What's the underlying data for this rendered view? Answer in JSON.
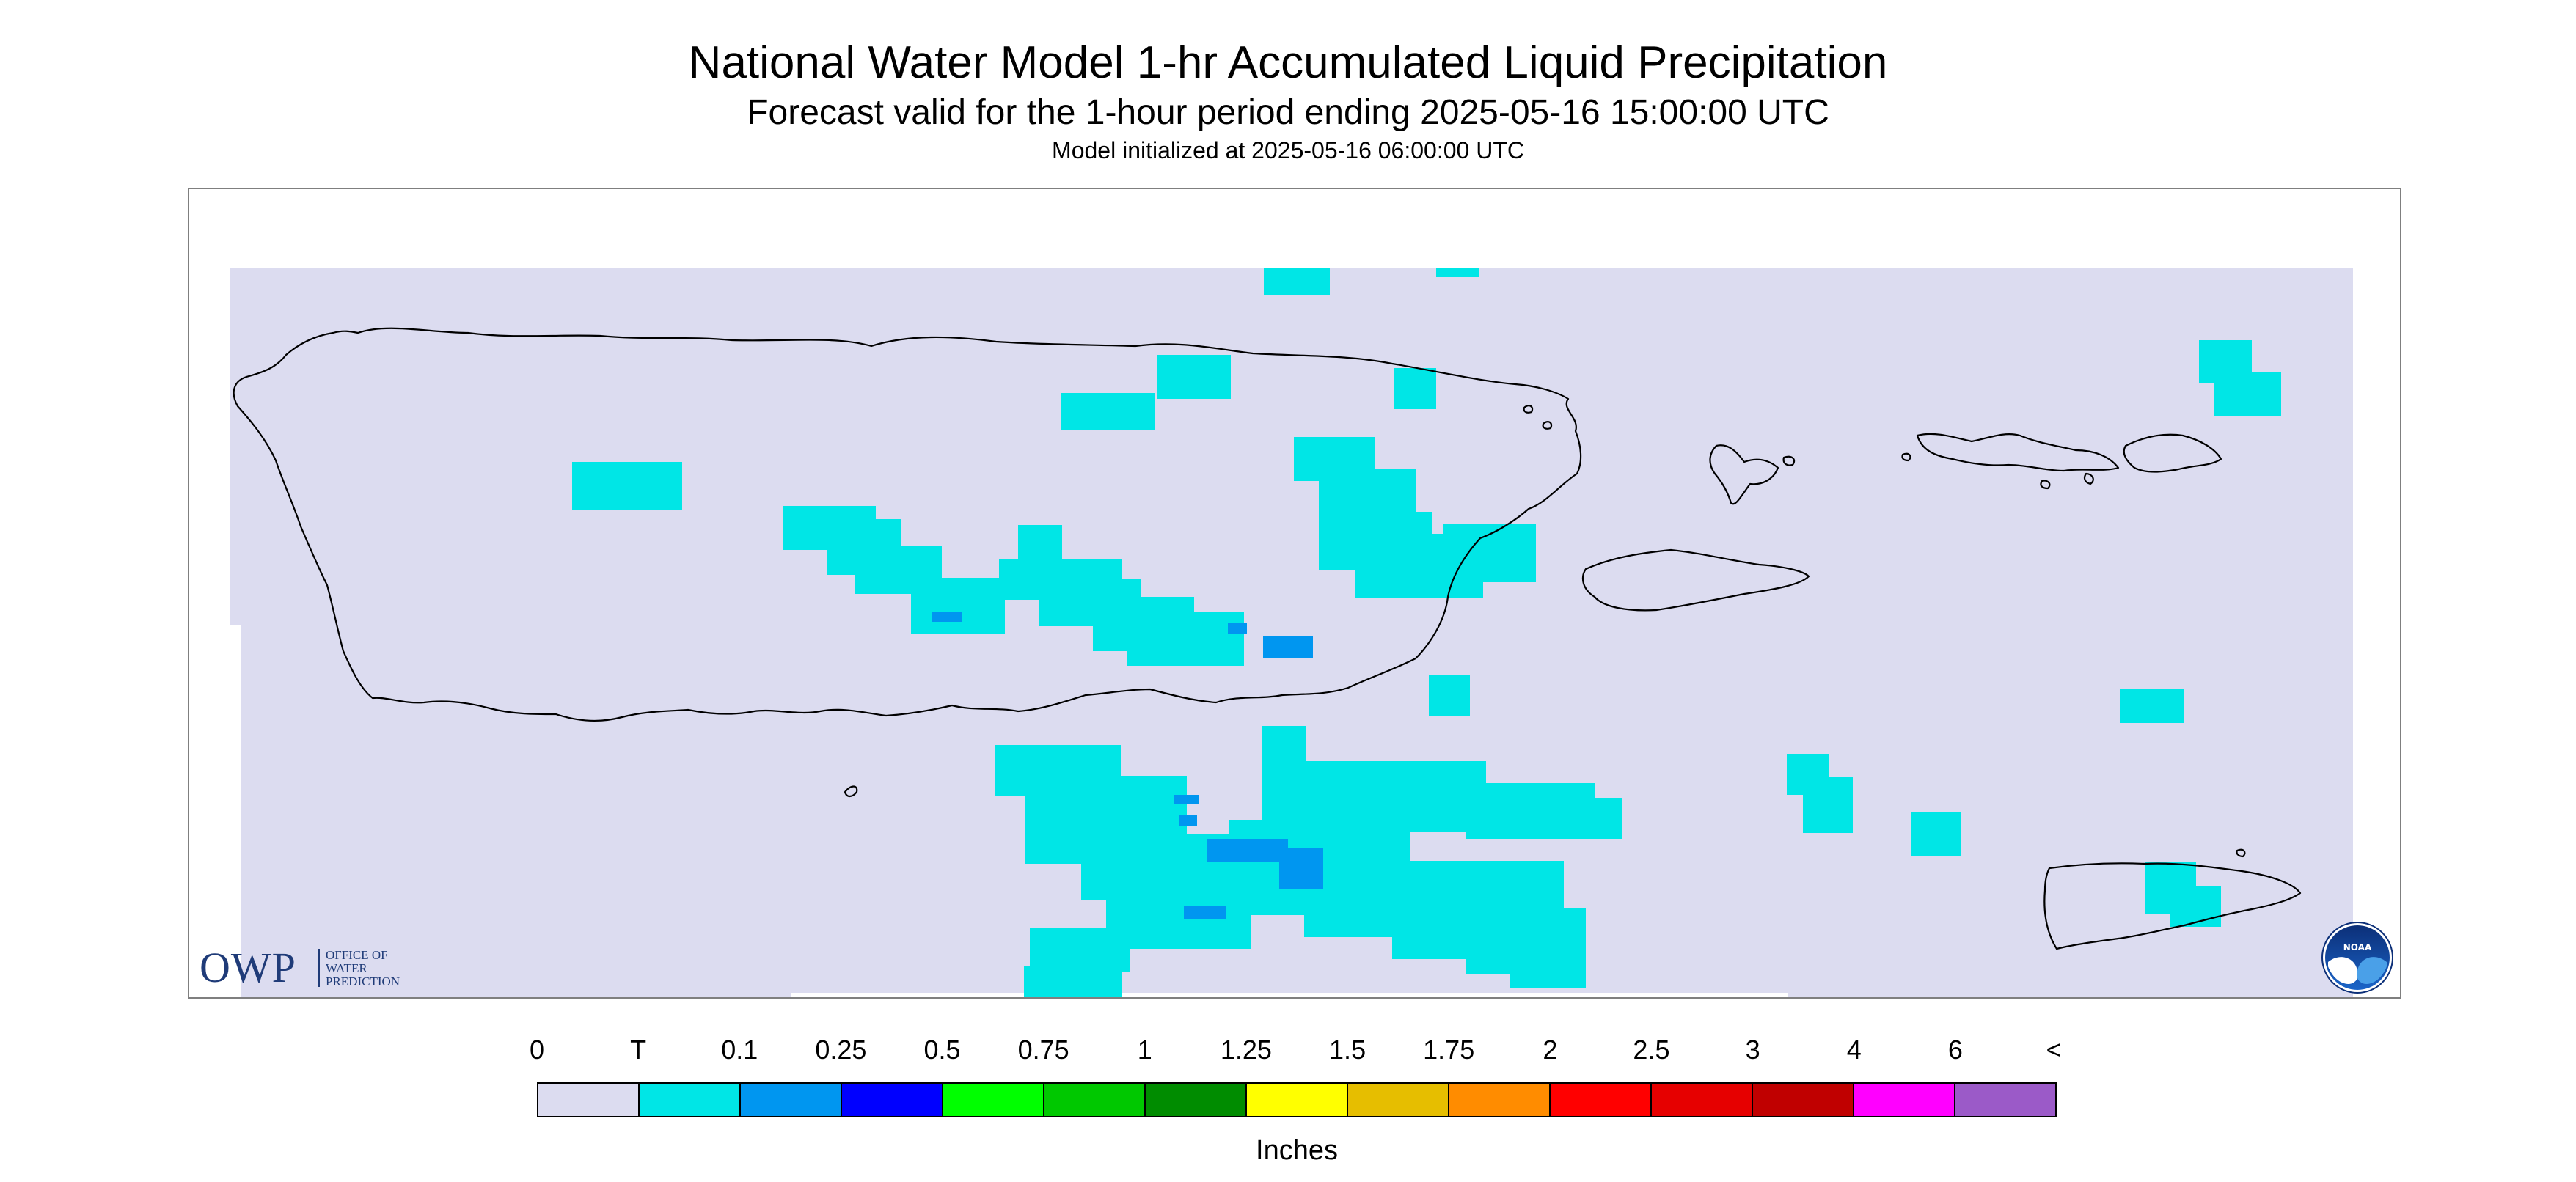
{
  "header": {
    "title": "National Water Model 1-hr Accumulated Liquid Precipitation",
    "subtitle": "Forecast valid for the 1-hour period ending 2025-05-16 15:00:00 UTC",
    "initialized": "Model initialized at 2025-05-16 06:00:00 UTC"
  },
  "map": {
    "background_color": "#dcdcf0",
    "coast_color": "#000000",
    "regions": [
      "Puerto Rico",
      "Vieques",
      "Culebra",
      "U.S. Virgin Islands",
      "St. Croix"
    ]
  },
  "logos": {
    "owp_mark": "OWP",
    "owp_text_line1": "Office of",
    "owp_text_line2": "Water",
    "owp_text_line3": "Prediction",
    "noaa_text": "NOAA"
  },
  "legend": {
    "labels": [
      "0",
      "T",
      "0.1",
      "0.25",
      "0.5",
      "0.75",
      "1",
      "1.25",
      "1.5",
      "1.75",
      "2",
      "2.5",
      "3",
      "4",
      "6",
      "<"
    ],
    "colors": [
      "#dcdcf0",
      "#00e6e6",
      "#0096f0",
      "#0000ff",
      "#00ff00",
      "#00c800",
      "#008c00",
      "#ffff00",
      "#e6be00",
      "#ff8c00",
      "#ff0000",
      "#e60000",
      "#c00000",
      "#ff00ff",
      "#9b5ac8"
    ],
    "units": "Inches"
  }
}
